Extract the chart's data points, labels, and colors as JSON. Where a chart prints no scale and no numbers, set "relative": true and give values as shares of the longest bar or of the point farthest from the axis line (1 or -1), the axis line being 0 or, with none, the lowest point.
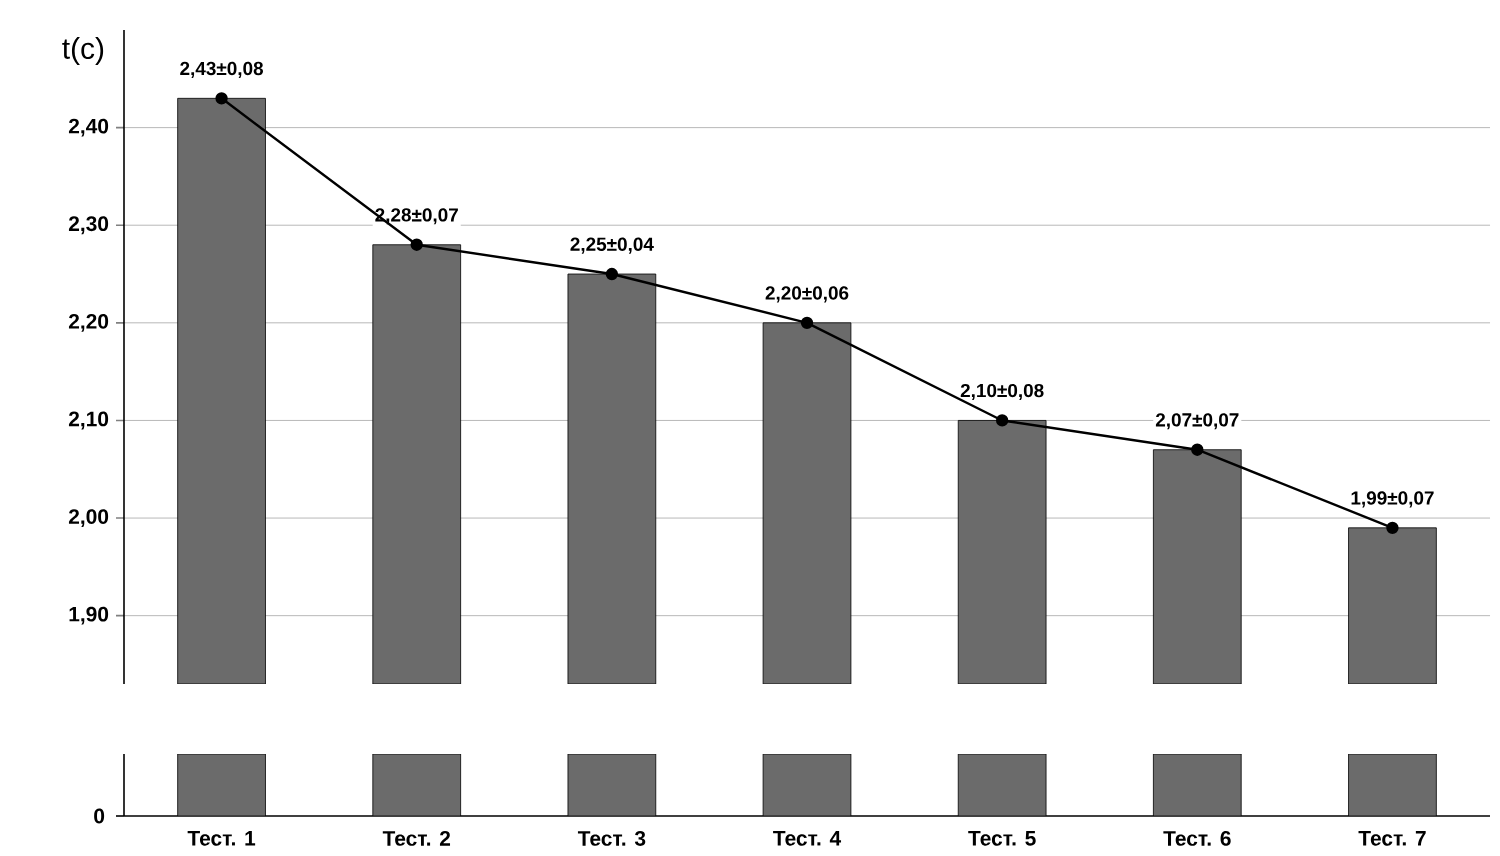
{
  "chart_data": [
    {
      "type": "bar",
      "ylabel": "t(c)",
      "categories": [
        null,
        null,
        null,
        null,
        null,
        null,
        null
      ],
      "ylim": [
        1.83,
        2.5
      ],
      "yticks": [
        {
          "value": 1.9,
          "label": "1,90"
        },
        {
          "value": 2.0,
          "label": "2,00"
        },
        {
          "value": 2.1,
          "label": "2,10"
        },
        {
          "value": 2.2,
          "label": "2,20"
        },
        {
          "value": 2.3,
          "label": "2,30"
        },
        {
          "value": 2.4,
          "label": "2,40"
        }
      ],
      "grid": "y",
      "tick_labels": "y",
      "series": [
        {
          "color": "#6b6b6b",
          "values": [
            2.43,
            2.28,
            2.25,
            2.2,
            2.1,
            2.07,
            1.99
          ],
          "value_labels": [
            "2,43±0,08",
            "2,28±0,07",
            "2,25±0,04",
            "2,20±0,06",
            "2,10±0,08",
            "2,07±0,07",
            "1,99±0,07"
          ]
        },
        {
          "type": "line",
          "color": "#000000",
          "marker": "circle",
          "values": [
            2.43,
            2.28,
            2.25,
            2.2,
            2.1,
            2.07,
            1.99
          ]
        }
      ]
    },
    {
      "type": "bar",
      "categories": [
        "Тест. 1",
        "Тест. 2",
        "Тест. 3",
        "Тест. 4",
        "Тест. 5",
        "Тест. 6",
        "Тест. 7"
      ],
      "relative": true,
      "annotations": [
        "0"
      ],
      "series": [
        {
          "color": "#6b6b6b",
          "values": [
            1,
            1,
            1,
            1,
            1,
            1,
            1
          ]
        }
      ]
    }
  ]
}
